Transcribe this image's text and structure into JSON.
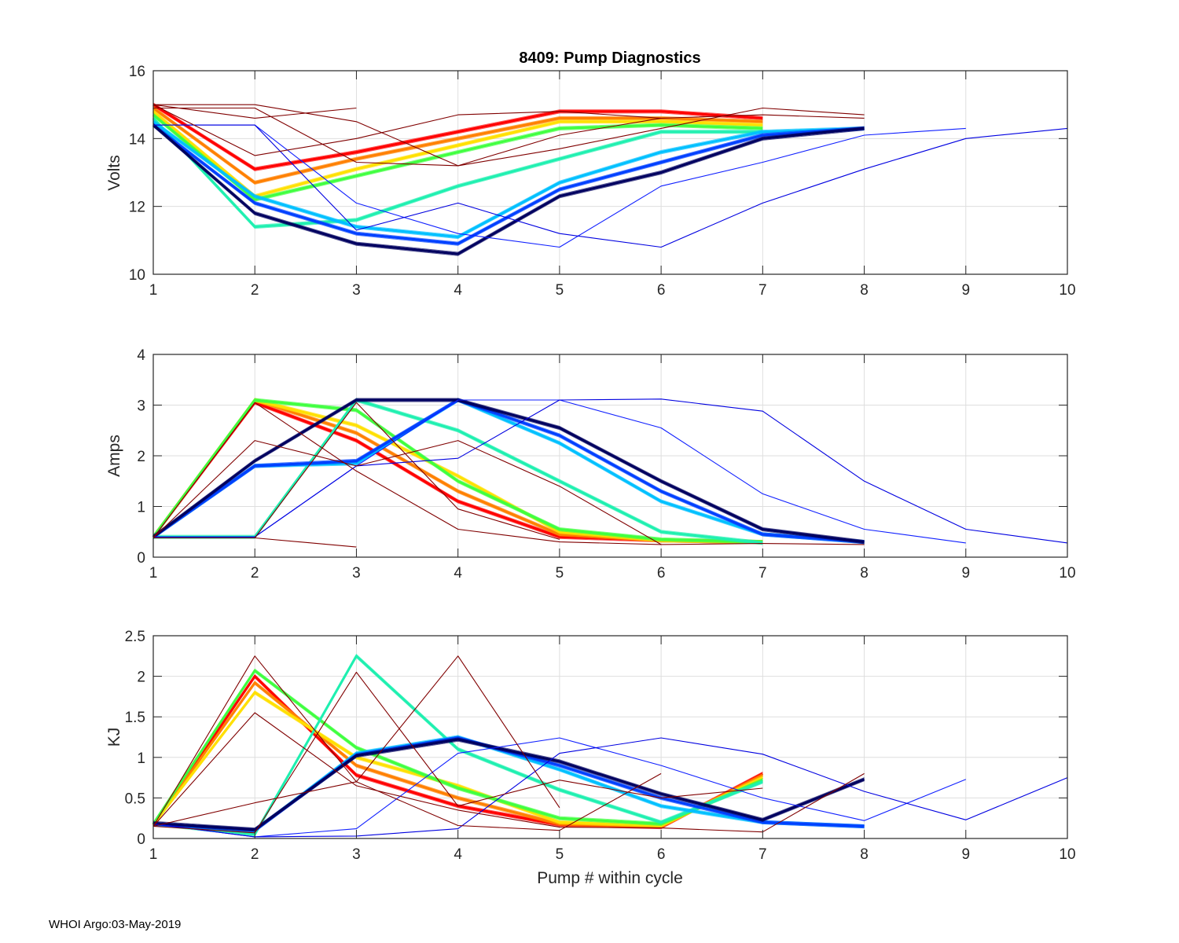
{
  "figure": {
    "title": "8409: Pump Diagnostics",
    "footer": "WHOI Argo:03-May-2019",
    "xlabel": "Pump # within cycle"
  },
  "chart_data": [
    {
      "type": "line",
      "title": "8409: Pump Diagnostics",
      "xlabel": "",
      "ylabel": "Volts",
      "xlim": [
        1,
        10
      ],
      "ylim": [
        10,
        16
      ],
      "xticks": [
        "1",
        "2",
        "3",
        "4",
        "5",
        "6",
        "7",
        "8",
        "9",
        "10"
      ],
      "yticks": [
        "10",
        "12",
        "14",
        "16"
      ],
      "ytick_values": [
        10,
        12,
        14,
        16
      ],
      "grid": true,
      "colormap": "jet",
      "series": [
        {
          "name": "group-red",
          "color": "#ff0000",
          "x": [
            1,
            2,
            3,
            4,
            5,
            6,
            7
          ],
          "values": [
            15.0,
            13.1,
            13.6,
            14.2,
            14.8,
            14.8,
            14.6
          ]
        },
        {
          "name": "group-orange",
          "color": "#ff8000",
          "x": [
            1,
            2,
            3,
            4,
            5,
            6,
            7
          ],
          "values": [
            14.9,
            12.7,
            13.4,
            14.0,
            14.6,
            14.6,
            14.5
          ]
        },
        {
          "name": "group-yellow",
          "color": "#ffe000",
          "x": [
            1,
            2,
            3,
            4,
            5,
            6,
            7
          ],
          "values": [
            14.8,
            12.3,
            13.1,
            13.8,
            14.5,
            14.5,
            14.4
          ]
        },
        {
          "name": "group-green",
          "color": "#40ff40",
          "x": [
            1,
            2,
            3,
            4,
            5,
            6,
            7
          ],
          "values": [
            14.7,
            12.2,
            12.9,
            13.6,
            14.3,
            14.4,
            14.3
          ]
        },
        {
          "name": "group-teal",
          "color": "#20f0b0",
          "x": [
            1,
            2,
            3,
            4,
            5,
            6,
            7
          ],
          "values": [
            14.6,
            11.4,
            11.6,
            12.6,
            13.4,
            14.2,
            14.2
          ]
        },
        {
          "name": "group-cyan",
          "color": "#00c0ff",
          "x": [
            1,
            2,
            3,
            4,
            5,
            6,
            7,
            8
          ],
          "values": [
            14.5,
            12.3,
            11.4,
            11.1,
            12.7,
            13.6,
            14.2,
            14.3
          ]
        },
        {
          "name": "group-blue",
          "color": "#0040ff",
          "x": [
            1,
            2,
            3,
            4,
            5,
            6,
            7,
            8
          ],
          "values": [
            14.4,
            12.1,
            11.2,
            10.9,
            12.5,
            13.3,
            14.1,
            14.3
          ]
        },
        {
          "name": "group-navy",
          "color": "#000060",
          "x": [
            1,
            2,
            3,
            4,
            5,
            6,
            7,
            8
          ],
          "values": [
            14.4,
            11.8,
            10.9,
            10.6,
            12.3,
            13.0,
            14.0,
            14.3
          ]
        },
        {
          "name": "late-blue-1",
          "color": "#1020ff",
          "x": [
            1,
            2,
            3,
            4,
            5,
            6,
            7,
            8,
            9
          ],
          "values": [
            14.4,
            14.4,
            12.1,
            11.2,
            10.8,
            12.6,
            13.3,
            14.1,
            14.3
          ]
        },
        {
          "name": "late-blue-2",
          "color": "#0000e0",
          "x": [
            1,
            2,
            3,
            4,
            5,
            6,
            7,
            8,
            9,
            10
          ],
          "values": [
            14.4,
            14.4,
            11.3,
            12.1,
            11.2,
            10.8,
            12.1,
            13.1,
            14.0,
            14.3
          ]
        },
        {
          "name": "early-darkred-1",
          "color": "#800000",
          "x": [
            1,
            2,
            3,
            4,
            5,
            6,
            7,
            8
          ],
          "values": [
            15.0,
            15.0,
            14.5,
            13.2,
            13.7,
            14.3,
            14.9,
            14.7
          ]
        },
        {
          "name": "early-darkred-2",
          "color": "#800000",
          "x": [
            1,
            2,
            3
          ],
          "values": [
            15.0,
            14.6,
            14.9
          ]
        },
        {
          "name": "early-darkred-3",
          "color": "#800000",
          "x": [
            1,
            2,
            3,
            4,
            5,
            6,
            7,
            8
          ],
          "values": [
            15.0,
            13.5,
            14.0,
            14.7,
            14.8,
            14.6,
            14.7,
            14.6
          ]
        },
        {
          "name": "early-darkred-4",
          "color": "#800000",
          "x": [
            1,
            2,
            3,
            4,
            5,
            6
          ],
          "values": [
            14.9,
            14.9,
            13.3,
            13.2,
            14.1,
            14.6
          ]
        }
      ]
    },
    {
      "type": "line",
      "title": "",
      "xlabel": "",
      "ylabel": "Amps",
      "xlim": [
        1,
        10
      ],
      "ylim": [
        0,
        4
      ],
      "xticks": [
        "1",
        "2",
        "3",
        "4",
        "5",
        "6",
        "7",
        "8",
        "9",
        "10"
      ],
      "yticks": [
        "0",
        "1",
        "2",
        "3",
        "4"
      ],
      "ytick_values": [
        0,
        1,
        2,
        3,
        4
      ],
      "grid": true,
      "colormap": "jet",
      "series": [
        {
          "name": "group-red",
          "color": "#ff0000",
          "x": [
            1,
            2,
            3,
            4,
            5,
            6,
            7
          ],
          "values": [
            0.4,
            3.05,
            2.3,
            1.1,
            0.4,
            0.33,
            0.3
          ]
        },
        {
          "name": "group-orange",
          "color": "#ff8000",
          "x": [
            1,
            2,
            3,
            4,
            5,
            6,
            7
          ],
          "values": [
            0.4,
            3.1,
            2.45,
            1.3,
            0.45,
            0.33,
            0.3
          ]
        },
        {
          "name": "group-yellow",
          "color": "#ffe000",
          "x": [
            1,
            2,
            3,
            4,
            5,
            6,
            7
          ],
          "values": [
            0.4,
            3.1,
            2.6,
            1.6,
            0.5,
            0.33,
            0.3
          ]
        },
        {
          "name": "group-green",
          "color": "#40ff40",
          "x": [
            1,
            2,
            3,
            4,
            5,
            6,
            7
          ],
          "values": [
            0.4,
            3.1,
            2.9,
            1.5,
            0.55,
            0.35,
            0.3
          ]
        },
        {
          "name": "group-teal",
          "color": "#20f0b0",
          "x": [
            1,
            2,
            3,
            4,
            5,
            6,
            7
          ],
          "values": [
            0.4,
            0.4,
            3.1,
            2.5,
            1.5,
            0.5,
            0.28
          ]
        },
        {
          "name": "group-cyan",
          "color": "#00c0ff",
          "x": [
            1,
            2,
            3,
            4,
            5,
            6,
            7,
            8
          ],
          "values": [
            0.4,
            1.8,
            1.85,
            3.1,
            2.25,
            1.1,
            0.45,
            0.3
          ]
        },
        {
          "name": "group-blue",
          "color": "#0040ff",
          "x": [
            1,
            2,
            3,
            4,
            5,
            6,
            7,
            8
          ],
          "values": [
            0.4,
            1.8,
            1.9,
            3.1,
            2.4,
            1.3,
            0.45,
            0.3
          ]
        },
        {
          "name": "group-navy",
          "color": "#000060",
          "x": [
            1,
            2,
            3,
            4,
            5,
            6,
            7,
            8
          ],
          "values": [
            0.4,
            1.9,
            3.1,
            3.1,
            2.55,
            1.5,
            0.55,
            0.3
          ]
        },
        {
          "name": "late-blue-1",
          "color": "#1020ff",
          "x": [
            1,
            2,
            3,
            4,
            5,
            6,
            7,
            8,
            9
          ],
          "values": [
            0.4,
            0.4,
            1.8,
            3.1,
            3.1,
            2.55,
            1.25,
            0.55,
            0.28
          ]
        },
        {
          "name": "late-blue-2",
          "color": "#0000e0",
          "x": [
            1,
            2,
            3,
            4,
            5,
            6,
            7,
            8,
            9,
            10
          ],
          "values": [
            0.4,
            0.4,
            1.8,
            1.95,
            3.1,
            3.12,
            2.88,
            1.5,
            0.55,
            0.28
          ]
        },
        {
          "name": "early-darkred-1",
          "color": "#800000",
          "x": [
            1,
            2,
            3,
            4,
            5,
            6
          ],
          "values": [
            0.38,
            2.3,
            1.8,
            2.3,
            1.4,
            0.25
          ]
        },
        {
          "name": "early-darkred-2",
          "color": "#800000",
          "x": [
            1,
            2,
            3
          ],
          "values": [
            0.38,
            0.38,
            0.2
          ]
        },
        {
          "name": "early-darkred-3",
          "color": "#800000",
          "x": [
            1,
            2,
            3,
            4,
            5
          ],
          "values": [
            0.38,
            0.38,
            3.05,
            0.95,
            0.35
          ]
        },
        {
          "name": "early-darkred-4",
          "color": "#800000",
          "x": [
            1,
            2,
            3,
            4,
            5,
            6,
            7,
            8
          ],
          "values": [
            0.38,
            3.05,
            1.7,
            0.55,
            0.3,
            0.25,
            0.27,
            0.25
          ]
        }
      ]
    },
    {
      "type": "line",
      "title": "",
      "xlabel": "Pump # within cycle",
      "ylabel": "KJ",
      "xlim": [
        1,
        10
      ],
      "ylim": [
        0,
        2.5
      ],
      "xticks": [
        "1",
        "2",
        "3",
        "4",
        "5",
        "6",
        "7",
        "8",
        "9",
        "10"
      ],
      "yticks": [
        "0",
        "0.5",
        "1",
        "1.5",
        "2",
        "2.5"
      ],
      "ytick_values": [
        0,
        0.5,
        1,
        1.5,
        2,
        2.5
      ],
      "grid": true,
      "colormap": "jet",
      "series": [
        {
          "name": "group-red",
          "color": "#ff0000",
          "x": [
            1,
            2,
            3,
            4,
            5,
            6,
            7
          ],
          "values": [
            0.17,
            2.0,
            0.78,
            0.4,
            0.17,
            0.14,
            0.8
          ]
        },
        {
          "name": "group-orange",
          "color": "#ff8000",
          "x": [
            1,
            2,
            3,
            4,
            5,
            6,
            7
          ],
          "values": [
            0.17,
            1.92,
            0.9,
            0.5,
            0.18,
            0.15,
            0.78
          ]
        },
        {
          "name": "group-yellow",
          "color": "#ffe000",
          "x": [
            1,
            2,
            3,
            4,
            5,
            6,
            7
          ],
          "values": [
            0.17,
            1.8,
            1.0,
            0.65,
            0.2,
            0.16,
            0.75
          ]
        },
        {
          "name": "group-green",
          "color": "#40ff40",
          "x": [
            1,
            2,
            3,
            4,
            5,
            6,
            7
          ],
          "values": [
            0.18,
            2.07,
            1.12,
            0.62,
            0.25,
            0.18,
            0.72
          ]
        },
        {
          "name": "group-teal",
          "color": "#20f0b0",
          "x": [
            1,
            2,
            3,
            4,
            5,
            6,
            7
          ],
          "values": [
            0.18,
            0.05,
            2.25,
            1.1,
            0.6,
            0.2,
            0.7
          ]
        },
        {
          "name": "group-cyan",
          "color": "#00c0ff",
          "x": [
            1,
            2,
            3,
            4,
            5,
            6,
            7,
            8
          ],
          "values": [
            0.18,
            0.1,
            1.05,
            1.25,
            0.85,
            0.4,
            0.2,
            0.15
          ]
        },
        {
          "name": "group-blue",
          "color": "#0040ff",
          "x": [
            1,
            2,
            3,
            4,
            5,
            6,
            7,
            8
          ],
          "values": [
            0.18,
            0.1,
            1.03,
            1.24,
            0.9,
            0.5,
            0.2,
            0.15
          ]
        },
        {
          "name": "group-navy",
          "color": "#000060",
          "x": [
            1,
            2,
            3,
            4,
            5,
            6,
            7,
            8
          ],
          "values": [
            0.19,
            0.11,
            1.02,
            1.22,
            0.95,
            0.55,
            0.23,
            0.73
          ]
        },
        {
          "name": "late-blue-1",
          "color": "#1020ff",
          "x": [
            1,
            2,
            3,
            4,
            5,
            6,
            7,
            8,
            9
          ],
          "values": [
            0.18,
            0.02,
            0.12,
            1.05,
            1.24,
            0.9,
            0.5,
            0.22,
            0.73
          ]
        },
        {
          "name": "late-blue-2",
          "color": "#0000e0",
          "x": [
            1,
            2,
            3,
            4,
            5,
            6,
            7,
            8,
            9,
            10
          ],
          "values": [
            0.18,
            0.02,
            0.03,
            0.12,
            1.05,
            1.24,
            1.04,
            0.58,
            0.23,
            0.75
          ]
        },
        {
          "name": "early-darkred-1",
          "color": "#800000",
          "x": [
            1,
            2,
            3,
            4,
            5,
            6
          ],
          "values": [
            0.15,
            2.25,
            0.7,
            0.16,
            0.1,
            0.8
          ]
        },
        {
          "name": "early-darkred-2",
          "color": "#800000",
          "x": [
            1,
            2,
            3,
            4,
            5
          ],
          "values": [
            0.15,
            0.44,
            0.7,
            2.25,
            0.38
          ]
        },
        {
          "name": "early-darkred-3",
          "color": "#800000",
          "x": [
            1,
            2,
            3,
            4,
            5,
            6,
            7,
            8
          ],
          "values": [
            0.15,
            1.55,
            0.65,
            0.35,
            0.14,
            0.13,
            0.08,
            0.8
          ]
        },
        {
          "name": "early-darkred-4",
          "color": "#800000",
          "x": [
            1,
            2,
            3,
            4,
            5,
            6,
            7
          ],
          "values": [
            0.15,
            0.07,
            2.05,
            0.4,
            0.72,
            0.5,
            0.62
          ]
        }
      ]
    }
  ]
}
